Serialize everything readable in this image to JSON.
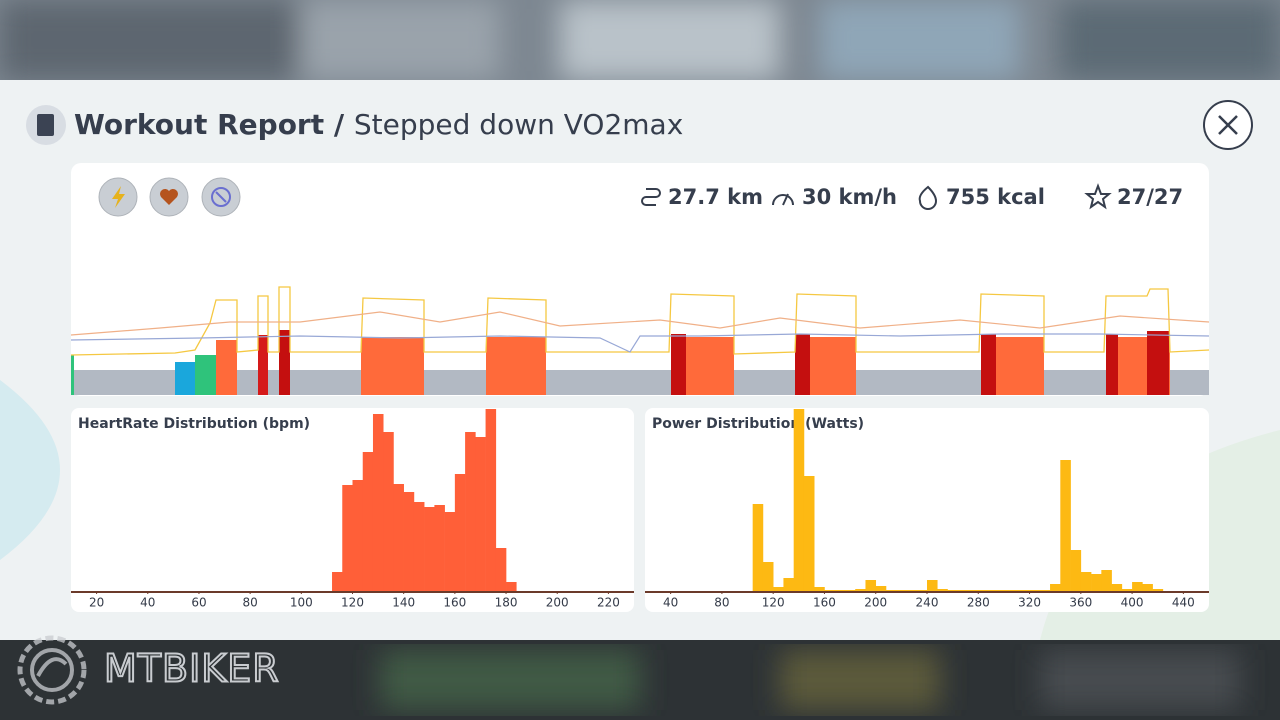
{
  "header": {
    "title": "Workout Report",
    "separator": "/",
    "subtitle": "Stepped down VO2max"
  },
  "stats": [
    "27.7 km",
    "30 km/h",
    "755 kcal",
    "27/27"
  ],
  "watermark": "MTBIKER",
  "chart_data": [
    {
      "type": "histogram",
      "title": "HeartRate Distribution (bpm)",
      "bins": [
        104,
        108,
        112,
        116,
        120,
        124,
        128,
        132,
        136,
        140,
        144,
        148,
        152,
        156,
        160,
        164,
        168,
        172,
        176,
        180,
        184
      ],
      "values": [
        1,
        1,
        20,
        107,
        112,
        140,
        178,
        160,
        108,
        100,
        90,
        85,
        87,
        80,
        118,
        160,
        155,
        183,
        44,
        10
      ],
      "color": "#ff5f38",
      "xlim": [
        10,
        230
      ],
      "xticks": [
        20,
        40,
        60,
        80,
        100,
        120,
        140,
        160,
        180,
        200,
        220
      ]
    },
    {
      "type": "histogram",
      "title": "Power Distribution (Watts)",
      "bins": [
        104,
        112,
        120,
        128,
        136,
        144,
        152,
        160,
        168,
        176,
        184,
        192,
        200,
        208,
        216,
        224,
        232,
        240,
        248,
        256,
        264,
        272,
        280,
        288,
        296,
        304,
        312,
        320,
        328,
        336,
        344,
        352,
        360,
        368,
        376,
        384,
        392,
        400,
        408,
        416,
        424,
        432,
        440
      ],
      "values": [
        88,
        30,
        5,
        14,
        183,
        116,
        5,
        2,
        2,
        2,
        3,
        12,
        6,
        2,
        2,
        2,
        2,
        12,
        3,
        2,
        2,
        2,
        2,
        2,
        2,
        2,
        2,
        2,
        2,
        8,
        132,
        42,
        20,
        18,
        22,
        8,
        3,
        10,
        8,
        3,
        1,
        0
      ],
      "color": "#fdb913",
      "xlim": [
        20,
        460
      ],
      "xticks": [
        40,
        80,
        120,
        160,
        200,
        240,
        280,
        320,
        360,
        400,
        440
      ]
    }
  ]
}
